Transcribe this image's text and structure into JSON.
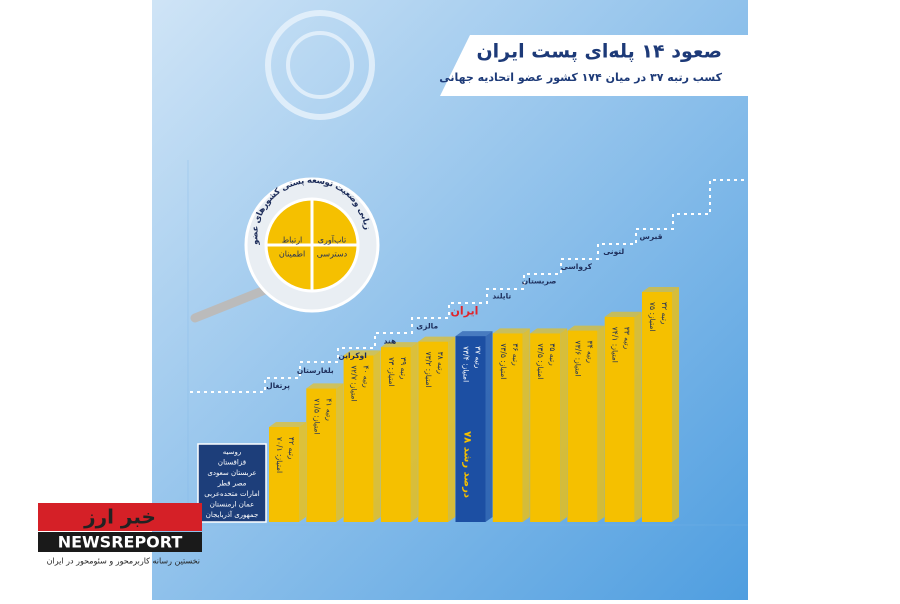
{
  "chart_data": {
    "type": "bar",
    "title": "صعود ۱۴ پله‌ای پست ایران",
    "subtitle": "کسب رتبه ۳۷ در میان ۱۷۴ کشور عضو اتحادیه جهانی",
    "categories": [
      "پرتغال",
      "بلغارستان",
      "اوکراین",
      "هند",
      "مالزی",
      "ایران",
      "تایلند",
      "صربستان",
      "کرواسی",
      "لتونی",
      "قبرس"
    ],
    "values": [
      70.1,
      71.5,
      72.7,
      73,
      73.2,
      73.4,
      73.5,
      73.5,
      73.6,
      74.1,
      75
    ],
    "value_labels": [
      "امتیاز: ۷۰/۱",
      "امتیاز: ۷۱/۵",
      "امتیاز: ۷۲/۷",
      "امتیاز: ۷۳",
      "امتیاز: ۷۳/۲",
      "امتیاز: ۷۳/۴",
      "امتیاز: ۷۳/۵",
      "امتیاز: ۷۳/۵",
      "امتیاز: ۷۳/۶",
      "امتیاز: ۷۴/۱",
      "امتیاز: ۷۵"
    ],
    "ranks": [
      "رتبه ۴۲",
      "رتبه ۴۱",
      "رتبه ۴۰",
      "رتبه ۳۹",
      "رتبه ۳۸",
      "رتبه ۳۷",
      "رتبه ۳۶",
      "رتبه ۳۵",
      "رتبه ۳۴",
      "رتبه ۳۳",
      "رتبه ۳۲"
    ],
    "bar_colors": [
      "#f5c000",
      "#f5c000",
      "#f5c000",
      "#f5c000",
      "#f5c000",
      "#1c4fa3",
      "#f5c000",
      "#f5c000",
      "#f5c000",
      "#f5c000",
      "#f5c000"
    ],
    "label_colors": [
      "#1d2d5a",
      "#1d2d5a",
      "#1d2d5a",
      "#1d2d5a",
      "#1d2d5a",
      "#e0242b",
      "#1d2d5a",
      "#1d2d5a",
      "#1d2d5a",
      "#1d2d5a",
      "#1d2d5a"
    ],
    "annotations": [
      "۷۸ درصد رشد"
    ]
  },
  "magnifier": {
    "ring_text": "شاخص‌های ارزیابی وضعیت توسعه پستی کشورهای عضو UPU",
    "quadrants": [
      "تاب‌آوری",
      "ارتباط",
      "دسترسی",
      "اطمینان"
    ]
  },
  "other_countries": [
    "روسیه",
    "قزاقستان",
    "عربستان سعودی",
    "مصر  قطر",
    "امارات متحده‌عربی",
    "عمان  ارمنستان",
    "جمهوری آذربایجان"
  ],
  "watermark": {
    "brand": "خبر ارز",
    "latin": "NEWSREPORT",
    "tagline": "نخستین رسانه کاربرمحور و سئومحور در ایران"
  }
}
